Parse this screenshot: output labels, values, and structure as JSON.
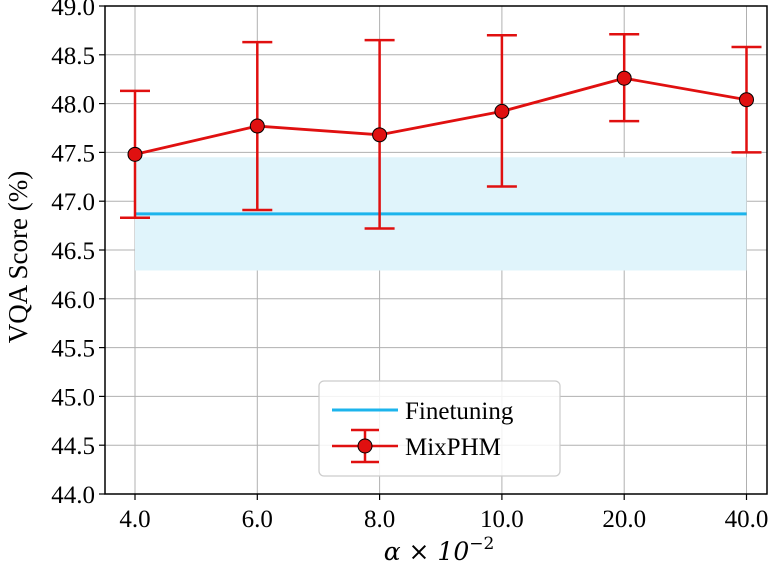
{
  "chart_data": {
    "type": "line",
    "xlabel_base": "α × 10",
    "xlabel_exp": "−2",
    "ylabel": "VQA Score (%)",
    "categories": [
      "4.0",
      "6.0",
      "8.0",
      "10.0",
      "20.0",
      "40.0"
    ],
    "yticks": [
      "44.0",
      "44.5",
      "45.0",
      "45.5",
      "46.0",
      "46.5",
      "47.0",
      "47.5",
      "48.0",
      "48.5",
      "49.0"
    ],
    "ylim": [
      44.0,
      49.0
    ],
    "grid": true,
    "legend_position": "lower-center",
    "series": [
      {
        "name": "Finetuning",
        "kind": "baseline",
        "value": 46.87,
        "band": [
          46.29,
          47.45
        ],
        "color": "#1cb4ec",
        "band_color": "#e0f4fb"
      },
      {
        "name": "MixPHM",
        "kind": "errorbar-line",
        "values": [
          47.48,
          47.77,
          47.68,
          47.92,
          48.26,
          48.04
        ],
        "lower": [
          46.83,
          46.91,
          46.72,
          47.15,
          47.82,
          47.5
        ],
        "upper": [
          48.13,
          48.63,
          48.65,
          48.7,
          48.71,
          48.58
        ],
        "color": "#e01010"
      }
    ]
  }
}
